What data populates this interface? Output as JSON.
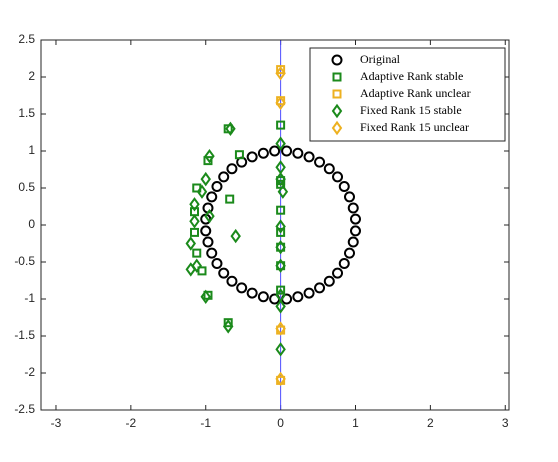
{
  "chart_data": {
    "type": "scatter",
    "xlim": [
      -3.2,
      3.05
    ],
    "ylim": [
      -2.5,
      2.5
    ],
    "xticks": [
      -3,
      -2,
      -1,
      0,
      1,
      2,
      3
    ],
    "yticks": [
      -2.5,
      -2,
      -1.5,
      -1,
      -0.5,
      0,
      0.5,
      1,
      1.5,
      2,
      2.5
    ],
    "reference_line": {
      "x": 0,
      "color": "#4d4dff"
    },
    "legend": "top-right",
    "series": [
      {
        "name": "Original",
        "marker": "circle",
        "color": "#000000",
        "x": [
          1.0,
          -1.0,
          -1.0,
          1.0,
          0.97,
          -0.97,
          -0.97,
          0.97,
          0.92,
          -0.92,
          -0.92,
          0.92,
          0.85,
          -0.85,
          -0.85,
          0.85,
          0.76,
          -0.76,
          -0.76,
          0.76,
          0.65,
          -0.65,
          -0.65,
          0.65,
          0.52,
          -0.52,
          -0.52,
          0.52,
          0.38,
          -0.38,
          -0.38,
          0.38,
          0.23,
          -0.23,
          -0.23,
          0.23,
          0.08,
          -0.08,
          -0.08,
          0.08
        ],
        "y": [
          0.08,
          0.08,
          -0.08,
          -0.08,
          0.23,
          0.23,
          -0.23,
          -0.23,
          0.38,
          0.38,
          -0.38,
          -0.38,
          0.52,
          0.52,
          -0.52,
          -0.52,
          0.65,
          0.65,
          -0.65,
          -0.65,
          0.76,
          0.76,
          -0.76,
          -0.76,
          0.85,
          0.85,
          -0.85,
          -0.85,
          0.92,
          0.92,
          -0.92,
          -0.92,
          0.97,
          0.97,
          -0.97,
          -0.97,
          1.0,
          1.0,
          -1.0,
          -1.0
        ]
      },
      {
        "name": "Adaptive Rank stable",
        "marker": "square",
        "color": "#1b8a1b",
        "x": [
          -0.7,
          -0.55,
          -0.97,
          -1.12,
          -0.68,
          -1.15,
          -1.15,
          -1.12,
          -1.05,
          -0.97,
          -0.7,
          0,
          0,
          0,
          0,
          0,
          0,
          0,
          0
        ],
        "y": [
          1.3,
          0.95,
          0.87,
          0.5,
          0.35,
          0.18,
          -0.1,
          -0.38,
          -0.62,
          -0.95,
          -1.32,
          1.35,
          0.6,
          0.55,
          0.2,
          -0.1,
          -0.3,
          -0.55,
          -0.88
        ]
      },
      {
        "name": "Adaptive Rank unclear",
        "marker": "square",
        "color": "#edb120",
        "x": [
          0,
          0,
          0,
          0
        ],
        "y": [
          2.1,
          1.68,
          -1.42,
          -2.1
        ]
      },
      {
        "name": "Fixed Rank 15 stable",
        "marker": "diamond",
        "color": "#1b8a1b",
        "x": [
          -0.67,
          0,
          -0.95,
          0,
          -1.0,
          0,
          0.03,
          -1.05,
          -1.15,
          -0.95,
          -1.15,
          0,
          -0.6,
          -1.2,
          0,
          -1.12,
          -1.2,
          0,
          0,
          -1.0,
          0,
          -0.7,
          0
        ],
        "y": [
          1.3,
          1.1,
          0.93,
          0.78,
          0.62,
          0.62,
          0.45,
          0.45,
          0.28,
          0.12,
          0.05,
          -0.02,
          -0.15,
          -0.25,
          -0.3,
          -0.55,
          -0.6,
          -0.55,
          -0.95,
          -0.97,
          -1.1,
          -1.37,
          -1.68
        ]
      },
      {
        "name": "Fixed Rank 15 unclear",
        "marker": "diamond",
        "color": "#edb120",
        "x": [
          0,
          0,
          0,
          0
        ],
        "y": [
          2.05,
          1.65,
          -1.4,
          -2.08
        ]
      }
    ]
  }
}
